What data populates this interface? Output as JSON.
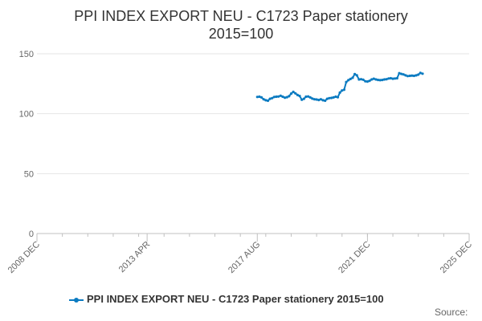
{
  "chart_data": {
    "type": "line",
    "title": "PPI INDEX EXPORT NEU - C1723 Paper stationery",
    "subtitle": "2015=100",
    "xlabel": "",
    "ylabel": "",
    "ylim": [
      0,
      150
    ],
    "yticks": [
      0,
      50,
      100,
      150
    ],
    "xlim": [
      "2008 DEC",
      "2025 DEC"
    ],
    "xticks": [
      "2008 DEC",
      "2013 APR",
      "2017 AUG",
      "2021 DEC",
      "2025 DEC"
    ],
    "grid": true,
    "legend_position": "bottom",
    "series": [
      {
        "name": "PPI INDEX EXPORT NEU - C1723 Paper stationery 2015=100",
        "color": "#0b7bc1",
        "points": [
          [
            "2017-08",
            114.0
          ],
          [
            "2017-09",
            114.2
          ],
          [
            "2017-10",
            113.6
          ],
          [
            "2017-11",
            112.0
          ],
          [
            "2017-12",
            111.2
          ],
          [
            "2018-01",
            110.8
          ],
          [
            "2018-02",
            112.4
          ],
          [
            "2018-03",
            113.0
          ],
          [
            "2018-04",
            114.0
          ],
          [
            "2018-05",
            114.2
          ],
          [
            "2018-06",
            114.3
          ],
          [
            "2018-07",
            115.0
          ],
          [
            "2018-08",
            114.2
          ],
          [
            "2018-09",
            113.4
          ],
          [
            "2018-10",
            113.8
          ],
          [
            "2018-11",
            114.6
          ],
          [
            "2018-12",
            116.8
          ],
          [
            "2019-01",
            118.2
          ],
          [
            "2019-02",
            117.0
          ],
          [
            "2019-03",
            115.6
          ],
          [
            "2019-04",
            114.8
          ],
          [
            "2019-05",
            111.6
          ],
          [
            "2019-06",
            112.4
          ],
          [
            "2019-07",
            114.2
          ],
          [
            "2019-08",
            114.4
          ],
          [
            "2019-09",
            113.6
          ],
          [
            "2019-10",
            112.6
          ],
          [
            "2019-11",
            112.0
          ],
          [
            "2019-12",
            111.8
          ],
          [
            "2020-01",
            111.4
          ],
          [
            "2020-02",
            112.0
          ],
          [
            "2020-03",
            111.2
          ],
          [
            "2020-04",
            110.8
          ],
          [
            "2020-05",
            112.4
          ],
          [
            "2020-06",
            113.0
          ],
          [
            "2020-07",
            113.2
          ],
          [
            "2020-08",
            113.6
          ],
          [
            "2020-09",
            114.2
          ],
          [
            "2020-10",
            113.8
          ],
          [
            "2020-11",
            117.6
          ],
          [
            "2020-12",
            119.4
          ],
          [
            "2021-01",
            120.0
          ],
          [
            "2021-02",
            126.4
          ],
          [
            "2021-03",
            128.0
          ],
          [
            "2021-04",
            129.0
          ],
          [
            "2021-05",
            130.0
          ],
          [
            "2021-06",
            133.0
          ],
          [
            "2021-07",
            132.0
          ],
          [
            "2021-08",
            128.6
          ],
          [
            "2021-09",
            128.8
          ],
          [
            "2021-10",
            128.4
          ],
          [
            "2021-11",
            127.0
          ],
          [
            "2021-12",
            126.8
          ],
          [
            "2022-01",
            127.4
          ],
          [
            "2022-02",
            128.6
          ],
          [
            "2022-03",
            129.2
          ],
          [
            "2022-04",
            128.6
          ],
          [
            "2022-05",
            128.2
          ],
          [
            "2022-06",
            128.0
          ],
          [
            "2022-07",
            128.2
          ],
          [
            "2022-08",
            128.6
          ],
          [
            "2022-09",
            128.8
          ],
          [
            "2022-10",
            129.4
          ],
          [
            "2022-11",
            129.6
          ],
          [
            "2022-12",
            129.2
          ],
          [
            "2023-01",
            129.4
          ],
          [
            "2023-02",
            129.6
          ],
          [
            "2023-03",
            133.8
          ],
          [
            "2023-04",
            133.2
          ],
          [
            "2023-05",
            132.8
          ],
          [
            "2023-06",
            132.0
          ],
          [
            "2023-07",
            131.4
          ],
          [
            "2023-08",
            131.6
          ],
          [
            "2023-09",
            131.8
          ],
          [
            "2023-10",
            131.6
          ],
          [
            "2023-11",
            132.0
          ],
          [
            "2023-12",
            132.6
          ],
          [
            "2024-01",
            134.0
          ],
          [
            "2024-02",
            133.4
          ]
        ]
      }
    ]
  },
  "source_label": "Source:"
}
